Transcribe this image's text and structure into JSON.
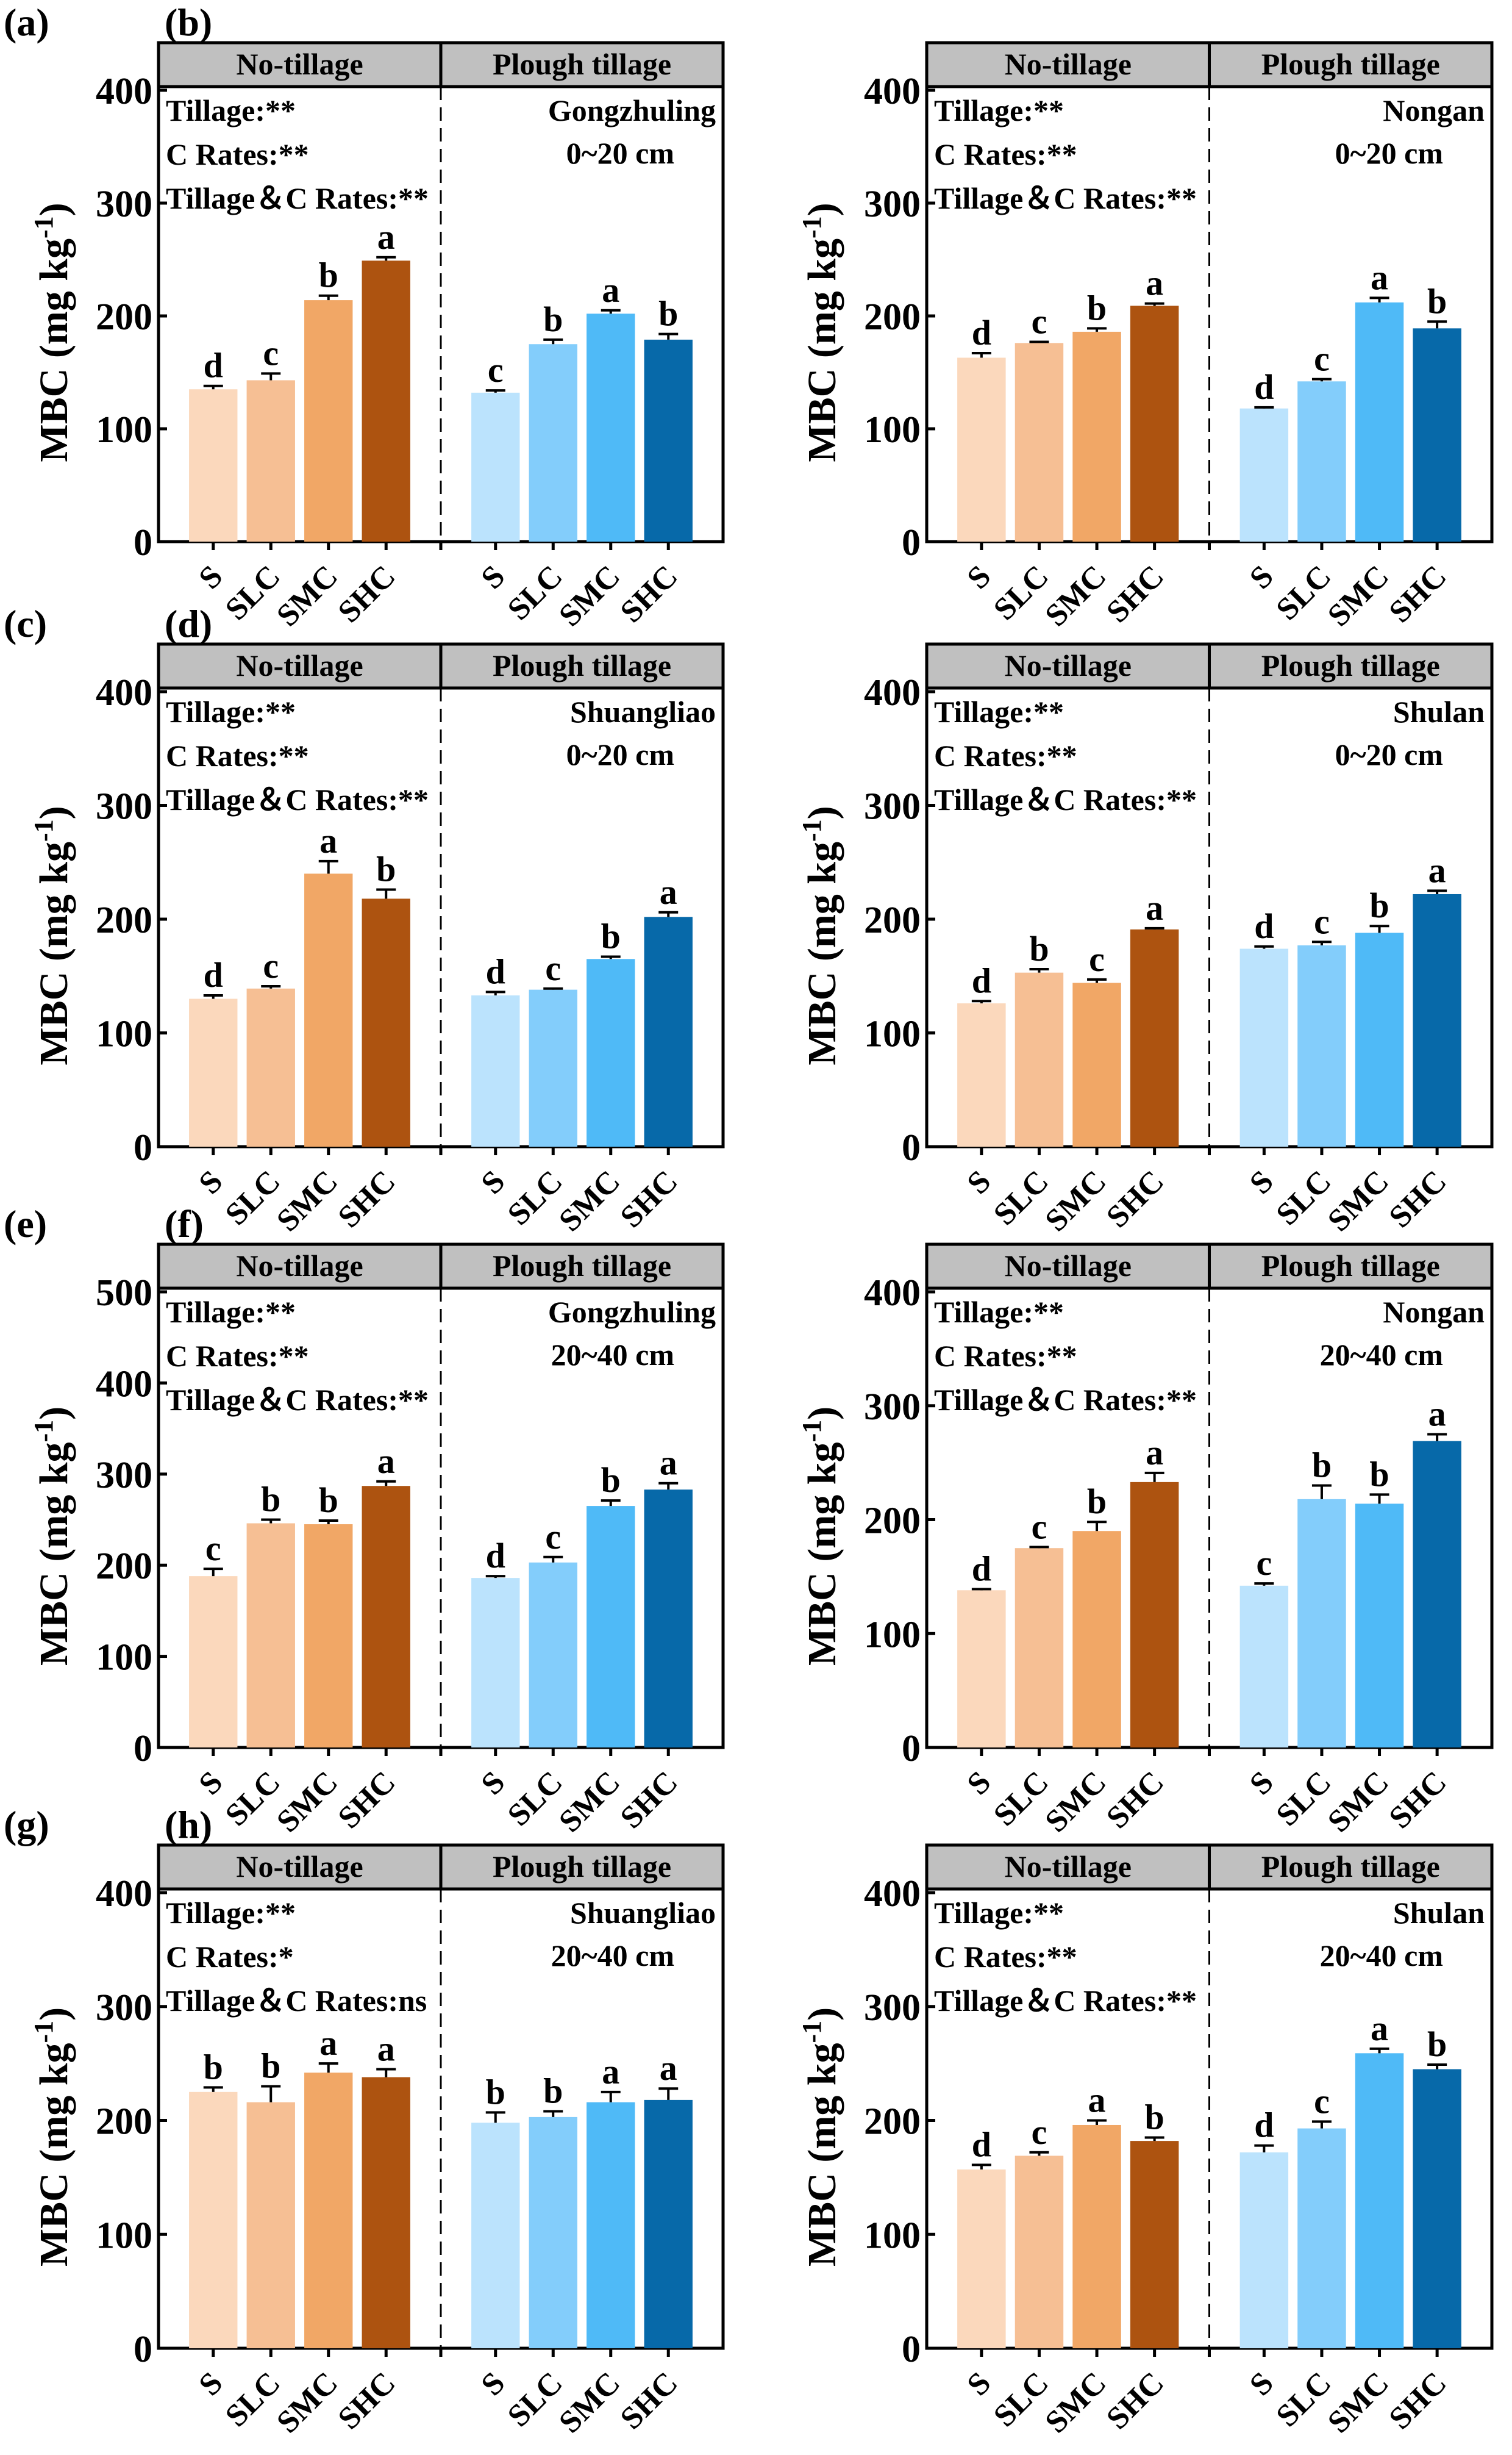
{
  "figure": {
    "ylabel": "MBC (mg kg",
    "ylabel_sup": "-1",
    "ylabel_close": ")",
    "group_headers": [
      "No-tillage",
      "Plough tillage"
    ],
    "categories": [
      "S",
      "SLC",
      "SMC",
      "SHC"
    ],
    "colors": {
      "no_tillage": [
        "#FBD8BC",
        "#F6BF94",
        "#F1A766",
        "#AD5310"
      ],
      "plough_tillage": [
        "#BBE3FD",
        "#83CDFB",
        "#4FBAF7",
        "#0769A9"
      ],
      "header_fill": "#C0C0C0"
    }
  },
  "chart_data": [
    {
      "type": "bar",
      "panel": "(a)",
      "site": "Gongzhuling",
      "depth": "0~20 cm",
      "ylim": [
        0,
        400
      ],
      "yticks": [
        0,
        100,
        200,
        300,
        400
      ],
      "stats": [
        "Tillage:**",
        "C Rates:**",
        "Tillage＆C Rates:**"
      ],
      "series": [
        {
          "name": "No-tillage",
          "values": [
            135,
            143,
            214,
            249
          ],
          "errors": [
            3,
            6,
            4,
            3
          ],
          "letters": [
            "d",
            "c",
            "b",
            "a"
          ]
        },
        {
          "name": "Plough tillage",
          "values": [
            132,
            175,
            202,
            179
          ],
          "errors": [
            2,
            4,
            3,
            5
          ],
          "letters": [
            "c",
            "b",
            "a",
            "b"
          ]
        }
      ]
    },
    {
      "type": "bar",
      "panel": "(b)",
      "site": "Nongan",
      "depth": "0~20 cm",
      "ylim": [
        0,
        400
      ],
      "yticks": [
        0,
        100,
        200,
        300,
        400
      ],
      "stats": [
        "Tillage:**",
        "C Rates:**",
        "Tillage＆C Rates:**"
      ],
      "series": [
        {
          "name": "No-tillage",
          "values": [
            163,
            176,
            186,
            209
          ],
          "errors": [
            4,
            1,
            3,
            2
          ],
          "letters": [
            "d",
            "c",
            "b",
            "a"
          ]
        },
        {
          "name": "Plough tillage",
          "values": [
            118,
            142,
            212,
            189
          ],
          "errors": [
            1,
            2,
            4,
            6
          ],
          "letters": [
            "d",
            "c",
            "a",
            "b"
          ]
        }
      ]
    },
    {
      "type": "bar",
      "panel": "(c)",
      "site": "Shuangliao",
      "depth": "0~20 cm",
      "ylim": [
        0,
        400
      ],
      "yticks": [
        0,
        100,
        200,
        300,
        400
      ],
      "stats": [
        "Tillage:**",
        "C Rates:**",
        "Tillage＆C Rates:**"
      ],
      "series": [
        {
          "name": "No-tillage",
          "values": [
            130,
            139,
            240,
            218
          ],
          "errors": [
            3,
            2,
            11,
            8
          ],
          "letters": [
            "d",
            "c",
            "a",
            "b"
          ]
        },
        {
          "name": "Plough tillage",
          "values": [
            133,
            138,
            165,
            202
          ],
          "errors": [
            3,
            1,
            2,
            4
          ],
          "letters": [
            "d",
            "c",
            "b",
            "a"
          ]
        }
      ]
    },
    {
      "type": "bar",
      "panel": "(d)",
      "site": "Shulan",
      "depth": "0~20 cm",
      "ylim": [
        0,
        400
      ],
      "yticks": [
        0,
        100,
        200,
        300,
        400
      ],
      "stats": [
        "Tillage:**",
        "C Rates:**",
        "Tillage＆C Rates:**"
      ],
      "series": [
        {
          "name": "No-tillage",
          "values": [
            126,
            153,
            144,
            191
          ],
          "errors": [
            2,
            3,
            3,
            1
          ],
          "letters": [
            "d",
            "b",
            "c",
            "a"
          ]
        },
        {
          "name": "Plough tillage",
          "values": [
            174,
            177,
            188,
            222
          ],
          "errors": [
            2,
            3,
            6,
            3
          ],
          "letters": [
            "d",
            "c",
            "b",
            "a"
          ]
        }
      ]
    },
    {
      "type": "bar",
      "panel": "(e)",
      "site": "Gongzhuling",
      "depth": "20~40 cm",
      "ylim": [
        0,
        500
      ],
      "yticks": [
        0,
        100,
        200,
        300,
        400,
        500
      ],
      "stats": [
        "Tillage:**",
        "C Rates:**",
        "Tillage＆C Rates:**"
      ],
      "series": [
        {
          "name": "No-tillage",
          "values": [
            188,
            246,
            245,
            287
          ],
          "errors": [
            8,
            4,
            4,
            5
          ],
          "letters": [
            "c",
            "b",
            "b",
            "a"
          ]
        },
        {
          "name": "Plough tillage",
          "values": [
            186,
            203,
            265,
            283
          ],
          "errors": [
            2,
            6,
            6,
            7
          ],
          "letters": [
            "d",
            "c",
            "b",
            "a"
          ]
        }
      ]
    },
    {
      "type": "bar",
      "panel": "(f)",
      "site": "Nongan",
      "depth": "20~40 cm",
      "ylim": [
        0,
        400
      ],
      "yticks": [
        0,
        100,
        200,
        300,
        400
      ],
      "stats": [
        "Tillage:**",
        "C Rates:**",
        "Tillage＆C Rates:**"
      ],
      "series": [
        {
          "name": "No-tillage",
          "values": [
            138,
            175,
            190,
            233
          ],
          "errors": [
            1,
            1,
            8,
            8
          ],
          "letters": [
            "d",
            "c",
            "b",
            "a"
          ]
        },
        {
          "name": "Plough tillage",
          "values": [
            142,
            218,
            214,
            269
          ],
          "errors": [
            2,
            12,
            8,
            6
          ],
          "letters": [
            "c",
            "b",
            "b",
            "a"
          ]
        }
      ]
    },
    {
      "type": "bar",
      "panel": "(g)",
      "site": "Shuangliao",
      "depth": "20~40 cm",
      "ylim": [
        0,
        400
      ],
      "yticks": [
        0,
        100,
        200,
        300,
        400
      ],
      "stats": [
        "Tillage:**",
        "C Rates:*",
        "Tillage＆C Rates:ns"
      ],
      "series": [
        {
          "name": "No-tillage",
          "values": [
            225,
            216,
            242,
            238
          ],
          "errors": [
            4,
            14,
            8,
            7
          ],
          "letters": [
            "b",
            "b",
            "a",
            "a"
          ]
        },
        {
          "name": "Plough tillage",
          "values": [
            198,
            203,
            216,
            218
          ],
          "errors": [
            9,
            5,
            9,
            10
          ],
          "letters": [
            "b",
            "b",
            "a",
            "a"
          ]
        }
      ]
    },
    {
      "type": "bar",
      "panel": "(h)",
      "site": "Shulan",
      "depth": "20~40 cm",
      "ylim": [
        0,
        400
      ],
      "yticks": [
        0,
        100,
        200,
        300,
        400
      ],
      "stats": [
        "Tillage:**",
        "C Rates:**",
        "Tillage＆C Rates:**"
      ],
      "series": [
        {
          "name": "No-tillage",
          "values": [
            157,
            169,
            196,
            182
          ],
          "errors": [
            4,
            3,
            4,
            3
          ],
          "letters": [
            "d",
            "c",
            "a",
            "b"
          ]
        },
        {
          "name": "Plough tillage",
          "values": [
            172,
            193,
            259,
            245
          ],
          "errors": [
            6,
            6,
            4,
            4
          ],
          "letters": [
            "d",
            "c",
            "a",
            "b"
          ]
        }
      ]
    }
  ]
}
